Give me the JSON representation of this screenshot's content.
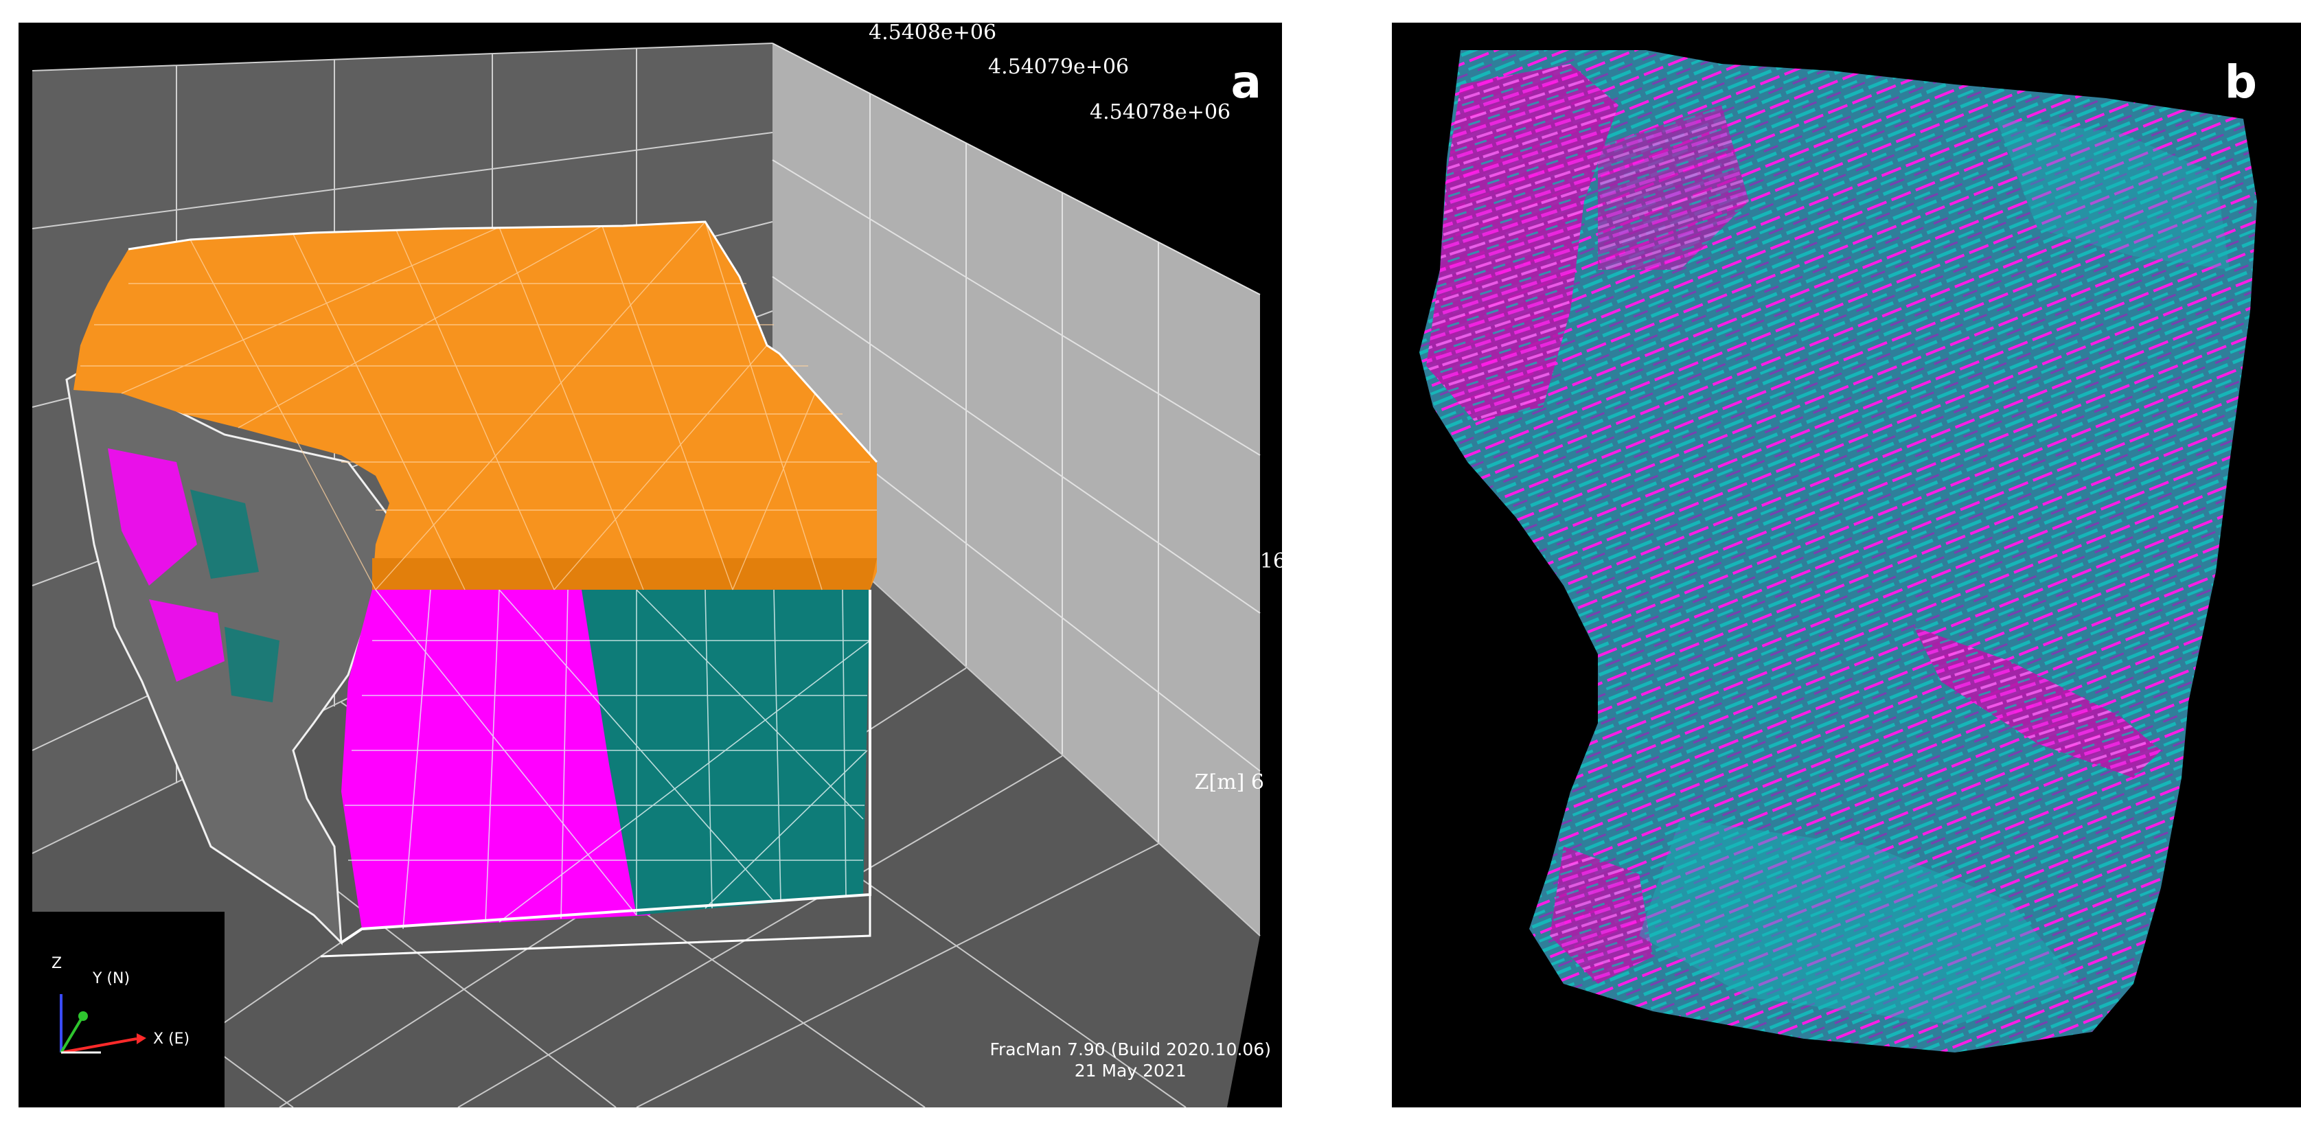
{
  "panel_a": {
    "letter": "a",
    "axis_values": [
      "4.5408e+06",
      "4.54079e+06",
      "4.54078e+06"
    ],
    "z_tick_upper": "16",
    "z_tick_lower": "Z[m] 6",
    "triad": {
      "z": "Z",
      "y": "Y (N)",
      "x": "X (E)"
    },
    "footer_line1": "FracMan 7.90 (Build 2020.10.06)",
    "footer_line2": "21 May 2021",
    "colors": {
      "top_surface": "#f7931e",
      "fracture_set_1": "#ff00ff",
      "fracture_set_2": "#0e7c78",
      "grid_floor": "#5c5c5c",
      "grid_wall": "#a8a8a8"
    }
  },
  "panel_b": {
    "letter": "b",
    "colors": {
      "fracture_set_1": "#ff1ce6",
      "fracture_set_2": "#16b6b8"
    }
  }
}
